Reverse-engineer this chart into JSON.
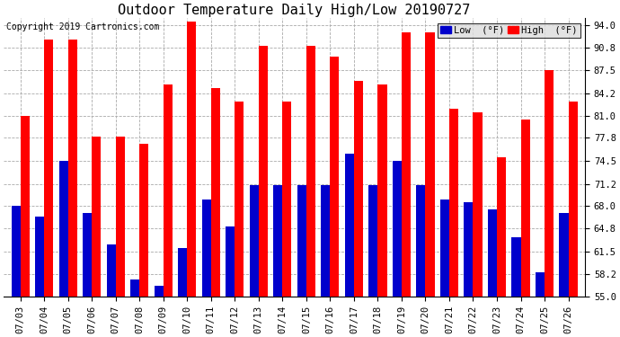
{
  "title": "Outdoor Temperature Daily High/Low 20190727",
  "copyright": "Copyright 2019 Cartronics.com",
  "dates": [
    "07/03",
    "07/04",
    "07/05",
    "07/06",
    "07/07",
    "07/08",
    "07/09",
    "07/10",
    "07/11",
    "07/12",
    "07/13",
    "07/14",
    "07/15",
    "07/16",
    "07/17",
    "07/18",
    "07/19",
    "07/20",
    "07/21",
    "07/22",
    "07/23",
    "07/24",
    "07/25",
    "07/26"
  ],
  "highs": [
    81.0,
    92.0,
    92.0,
    78.0,
    78.0,
    77.0,
    85.5,
    94.5,
    85.0,
    83.0,
    91.0,
    83.0,
    91.0,
    89.5,
    86.0,
    85.5,
    93.0,
    93.0,
    82.0,
    81.5,
    75.0,
    80.5,
    87.5,
    83.0
  ],
  "lows": [
    68.0,
    66.5,
    74.5,
    67.0,
    62.5,
    57.5,
    56.5,
    62.0,
    69.0,
    65.0,
    71.0,
    71.0,
    71.0,
    71.0,
    75.5,
    71.0,
    74.5,
    71.0,
    69.0,
    68.5,
    67.5,
    63.5,
    58.5,
    67.0
  ],
  "high_color": "#ff0000",
  "low_color": "#0000cc",
  "ylim_min": 55.0,
  "ylim_max": 95.0,
  "yticks": [
    55.0,
    58.2,
    61.5,
    64.8,
    68.0,
    71.2,
    74.5,
    77.8,
    81.0,
    84.2,
    87.5,
    90.8,
    94.0
  ],
  "background_color": "#ffffff",
  "plot_bg_color": "#ffffff",
  "grid_color": "#aaaaaa",
  "title_fontsize": 11,
  "copyright_fontsize": 7,
  "tick_fontsize": 7.5,
  "bar_bottom": 55.0
}
